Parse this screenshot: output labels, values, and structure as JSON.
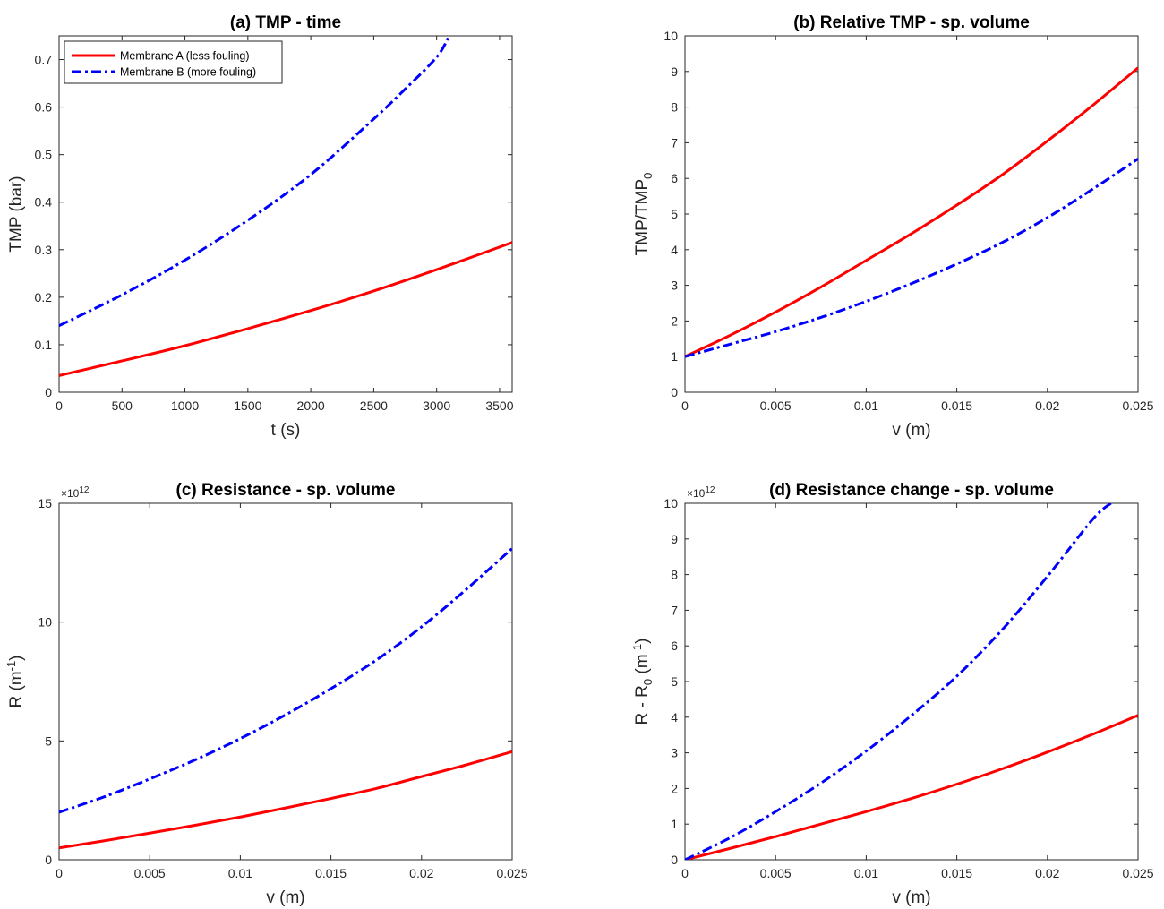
{
  "legend": {
    "position": "top-left of panel (a)",
    "entries": [
      {
        "label": "Membrane A (less fouling)",
        "color": "#ff0000",
        "style": "solid"
      },
      {
        "label": "Membrane B (more fouling)",
        "color": "#0000ff",
        "style": "dash-dot"
      }
    ]
  },
  "chart_data": [
    {
      "type": "line",
      "title": "(a) TMP - time",
      "xlabel": "t (s)",
      "ylabel": "TMP (bar)",
      "xlim": [
        0,
        3600
      ],
      "ylim": [
        0,
        0.75
      ],
      "xticks": [
        0,
        500,
        1000,
        1500,
        2000,
        2500,
        3000,
        3500
      ],
      "xtick_labels": [
        "0",
        "500",
        "1000",
        "1500",
        "2000",
        "2500",
        "3000",
        "3500"
      ],
      "yticks": [
        0,
        0.1,
        0.2,
        0.3,
        0.4,
        0.5,
        0.6,
        0.7
      ],
      "ytick_labels": [
        "0",
        "0.1",
        "0.2",
        "0.3",
        "0.4",
        "0.5",
        "0.6",
        "0.7"
      ],
      "grid": false,
      "series": [
        {
          "name": "Membrane A (less fouling)",
          "color": "#ff0000",
          "style": "solid",
          "x": [
            0,
            500,
            1000,
            1500,
            2000,
            2500,
            3000,
            3600
          ],
          "y": [
            0.035,
            0.066,
            0.098,
            0.134,
            0.172,
            0.213,
            0.258,
            0.315
          ]
        },
        {
          "name": "Membrane B (more fouling)",
          "color": "#0000ff",
          "style": "dash-dot",
          "x": [
            0,
            500,
            1000,
            1500,
            2000,
            2500,
            2750,
            3000,
            3100
          ],
          "y": [
            0.14,
            0.205,
            0.278,
            0.362,
            0.458,
            0.575,
            0.638,
            0.705,
            0.75
          ]
        }
      ]
    },
    {
      "type": "line",
      "title": "(b) Relative TMP - sp. volume",
      "xlabel": "v (m)",
      "ylabel": "TMP/TMP",
      "ylabel_sub": "0",
      "xlim": [
        0,
        0.025
      ],
      "ylim": [
        0,
        10
      ],
      "xticks": [
        0,
        0.005,
        0.01,
        0.015,
        0.02,
        0.025
      ],
      "xtick_labels": [
        "0",
        "0.005",
        "0.01",
        "0.015",
        "0.02",
        "0.025"
      ],
      "yticks": [
        0,
        1,
        2,
        3,
        4,
        5,
        6,
        7,
        8,
        9,
        10
      ],
      "ytick_labels": [
        "0",
        "1",
        "2",
        "3",
        "4",
        "5",
        "6",
        "7",
        "8",
        "9",
        "10"
      ],
      "grid": false,
      "series": [
        {
          "name": "Membrane A (less fouling)",
          "color": "#ff0000",
          "style": "solid",
          "x": [
            0,
            0.0025,
            0.005,
            0.0075,
            0.01,
            0.0125,
            0.015,
            0.0175,
            0.02,
            0.0225,
            0.025
          ],
          "y": [
            1.0,
            1.6,
            2.25,
            2.95,
            3.7,
            4.45,
            5.25,
            6.1,
            7.05,
            8.05,
            9.1
          ]
        },
        {
          "name": "Membrane B (more fouling)",
          "color": "#0000ff",
          "style": "dash-dot",
          "x": [
            0,
            0.0025,
            0.005,
            0.0075,
            0.01,
            0.0125,
            0.015,
            0.0175,
            0.02,
            0.0225,
            0.025
          ],
          "y": [
            1.0,
            1.35,
            1.7,
            2.1,
            2.55,
            3.05,
            3.6,
            4.2,
            4.9,
            5.7,
            6.55
          ]
        }
      ]
    },
    {
      "type": "line",
      "title": "(c) Resistance - sp. volume",
      "xlabel": "v (m)",
      "ylabel": "R (m",
      "ylabel_sup": "-1",
      "ylabel_end": ")",
      "y_exponent": "×10",
      "y_exponent_power": "12",
      "xlim": [
        0,
        0.025
      ],
      "ylim": [
        0,
        15
      ],
      "xticks": [
        0,
        0.005,
        0.01,
        0.015,
        0.02,
        0.025
      ],
      "xtick_labels": [
        "0",
        "0.005",
        "0.01",
        "0.015",
        "0.02",
        "0.025"
      ],
      "yticks": [
        0,
        5,
        10,
        15
      ],
      "ytick_labels": [
        "0",
        "5",
        "10",
        "15"
      ],
      "grid": false,
      "series": [
        {
          "name": "Membrane A (less fouling)",
          "color": "#ff0000",
          "style": "solid",
          "x": [
            0,
            0.0025,
            0.005,
            0.0075,
            0.01,
            0.0125,
            0.015,
            0.0175,
            0.02,
            0.0225,
            0.025
          ],
          "y": [
            0.5,
            0.8,
            1.12,
            1.45,
            1.8,
            2.18,
            2.58,
            3.0,
            3.5,
            4.0,
            4.55
          ]
        },
        {
          "name": "Membrane B (more fouling)",
          "color": "#0000ff",
          "style": "dash-dot",
          "x": [
            0,
            0.0025,
            0.005,
            0.0075,
            0.01,
            0.0125,
            0.015,
            0.0175,
            0.02,
            0.0225,
            0.025
          ],
          "y": [
            2.0,
            2.65,
            3.4,
            4.2,
            5.1,
            6.1,
            7.2,
            8.4,
            9.8,
            11.4,
            13.1
          ]
        }
      ]
    },
    {
      "type": "line",
      "title": "(d) Resistance change - sp. volume",
      "xlabel": "v (m)",
      "ylabel": "R - R",
      "ylabel_sub": "0",
      "ylabel_mid": " (m",
      "ylabel_sup": "-1",
      "ylabel_end": ")",
      "y_exponent": "×10",
      "y_exponent_power": "12",
      "xlim": [
        0,
        0.025
      ],
      "ylim": [
        0,
        10
      ],
      "xticks": [
        0,
        0.005,
        0.01,
        0.015,
        0.02,
        0.025
      ],
      "xtick_labels": [
        "0",
        "0.005",
        "0.01",
        "0.015",
        "0.02",
        "0.025"
      ],
      "yticks": [
        0,
        1,
        2,
        3,
        4,
        5,
        6,
        7,
        8,
        9,
        10
      ],
      "ytick_labels": [
        "0",
        "1",
        "2",
        "3",
        "4",
        "5",
        "6",
        "7",
        "8",
        "9",
        "10"
      ],
      "grid": false,
      "series": [
        {
          "name": "Membrane A (less fouling)",
          "color": "#ff0000",
          "style": "solid",
          "x": [
            0,
            0.0025,
            0.005,
            0.0075,
            0.01,
            0.0125,
            0.015,
            0.0175,
            0.02,
            0.0225,
            0.025
          ],
          "y": [
            0.0,
            0.32,
            0.65,
            1.0,
            1.35,
            1.72,
            2.12,
            2.55,
            3.02,
            3.52,
            4.05
          ]
        },
        {
          "name": "Membrane B (more fouling)",
          "color": "#0000ff",
          "style": "dash-dot",
          "x": [
            0,
            0.0025,
            0.005,
            0.0075,
            0.01,
            0.0125,
            0.015,
            0.0175,
            0.02,
            0.0225,
            0.0235
          ],
          "y": [
            0.0,
            0.62,
            1.35,
            2.15,
            3.05,
            4.05,
            5.15,
            6.45,
            7.95,
            9.55,
            10.0
          ]
        }
      ]
    }
  ]
}
